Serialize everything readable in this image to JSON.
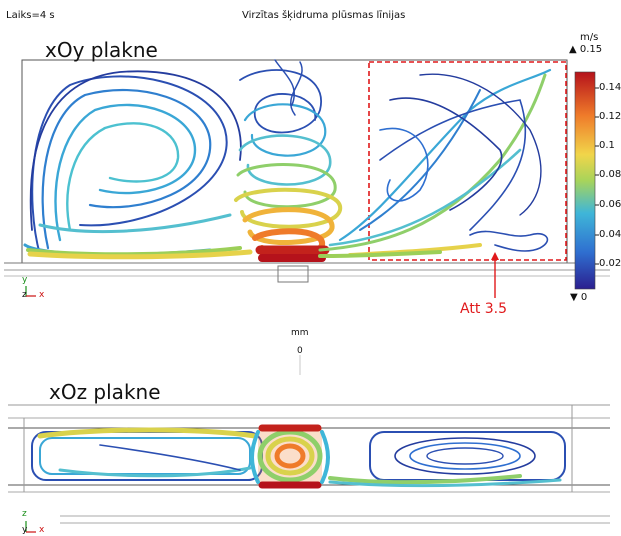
{
  "header": {
    "time_label": "Laiks=4 s",
    "title": "Virzītas šķidruma plūsmas līnijas"
  },
  "top_plot": {
    "plane_label": "xOy plakne",
    "annotation": "Att 3.5",
    "axes": {
      "vertical": "y",
      "horizontal": "x",
      "out_of_plane": "z"
    }
  },
  "mid_scale": {
    "unit": "mm",
    "value": "0"
  },
  "bottom_plot": {
    "plane_label": "xOz plakne",
    "axes": {
      "vertical": "z",
      "horizontal": "x",
      "out_of_plane": "y"
    }
  },
  "colorbar": {
    "unit": "m/s",
    "max_label": "▲ 0.15",
    "min_label": "▼ 0",
    "ticks": [
      "0.14",
      "0.12",
      "0.1",
      "0.08",
      "0.06",
      "0.04",
      "0.02"
    ],
    "colors": [
      "#2b1f8f",
      "#2f6fd0",
      "#3fb6d8",
      "#a8d45a",
      "#f1d54a",
      "#ef7b2a",
      "#b5121b"
    ]
  }
}
